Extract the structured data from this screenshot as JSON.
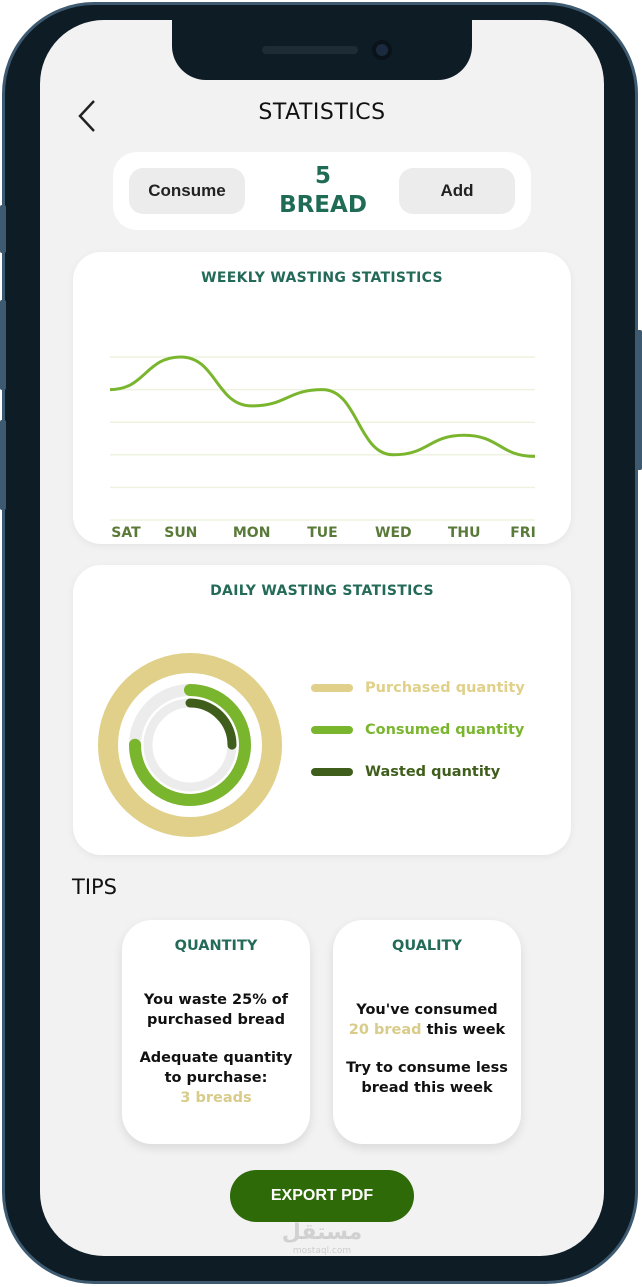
{
  "header": {
    "title": "STATISTICS",
    "back_icon": "chevron-left-icon"
  },
  "counter": {
    "consume_label": "Consume",
    "add_label": "Add",
    "count": "5",
    "unit": "BREAD"
  },
  "weekly": {
    "title": "WEEKLY WASTING STATISTICS"
  },
  "daily": {
    "title": "DAILY WASTING STATISTICS"
  },
  "tips": {
    "heading": "TIPS",
    "quantity": {
      "title": "QUANTITY",
      "line1": "You waste 25% of purchased bread",
      "line2": "Adequate quantity to purchase:",
      "highlight": "3 breads"
    },
    "quality": {
      "title": "QUALITY",
      "line1a": "You've consumed",
      "highlight": "20 bread",
      "line1b": " this week",
      "line2": "Try to consume less bread this week"
    }
  },
  "export_label": "EXPORT PDF",
  "watermark": {
    "text": "مستقل",
    "site": "mostaql.com"
  },
  "colors": {
    "primary": "#236a58",
    "line": "#7ab52e",
    "purchased": "#e0d089",
    "consumed": "#7ab52e",
    "wasted": "#3f5e1c",
    "button": "#2e6a08"
  },
  "chart_data": [
    {
      "type": "line",
      "title": "WEEKLY WASTING STATISTICS",
      "categories": [
        "SAT",
        "SUN",
        "MON",
        "TUE",
        "WED",
        "THU",
        "FRI"
      ],
      "values": [
        4,
        5,
        3.5,
        4,
        2,
        2.6,
        1.95
      ],
      "ylim": [
        0,
        5
      ],
      "grid": true,
      "smooth": true
    },
    {
      "type": "radial",
      "title": "DAILY WASTING STATISTICS",
      "legend": "right",
      "series": [
        {
          "name": "Purchased quantity",
          "value": 1.0,
          "color": "#e0d089"
        },
        {
          "name": "Consumed quantity",
          "value": 0.75,
          "color": "#7ab52e"
        },
        {
          "name": "Wasted quantity",
          "value": 0.25,
          "color": "#3f5e1c"
        }
      ]
    }
  ]
}
